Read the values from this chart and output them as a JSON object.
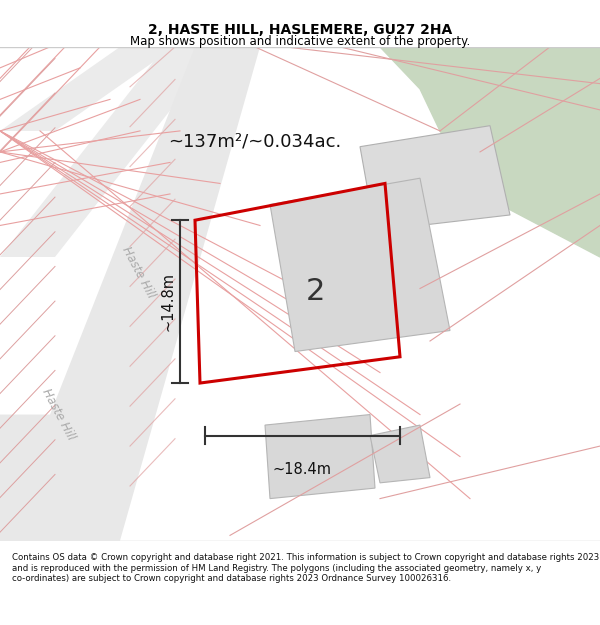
{
  "title": "2, HASTE HILL, HASLEMERE, GU27 2HA",
  "subtitle": "Map shows position and indicative extent of the property.",
  "footer": "Contains OS data © Crown copyright and database right 2021. This information is subject to Crown copyright and database rights 2023 and is reproduced with the permission of HM Land Registry. The polygons (including the associated geometry, namely x, y co-ordinates) are subject to Crown copyright and database rights 2023 Ordnance Survey 100026316.",
  "area_label": "~137m²/~0.034ac.",
  "width_label": "~18.4m",
  "height_label": "~14.8m",
  "property_number": "2",
  "bg_color": "#f5f5f0",
  "map_bg": "#ffffff",
  "green_area_color": "#c8d8c0",
  "road_color": "#e8e8e8",
  "road_line_color": "#e0b0b0",
  "building_fill": "#d8d8d8",
  "building_edge": "#b0b0b0",
  "red_polygon_color": "#cc0000",
  "road_label1": "Haste Hill",
  "road_label2": "Haste Hill"
}
